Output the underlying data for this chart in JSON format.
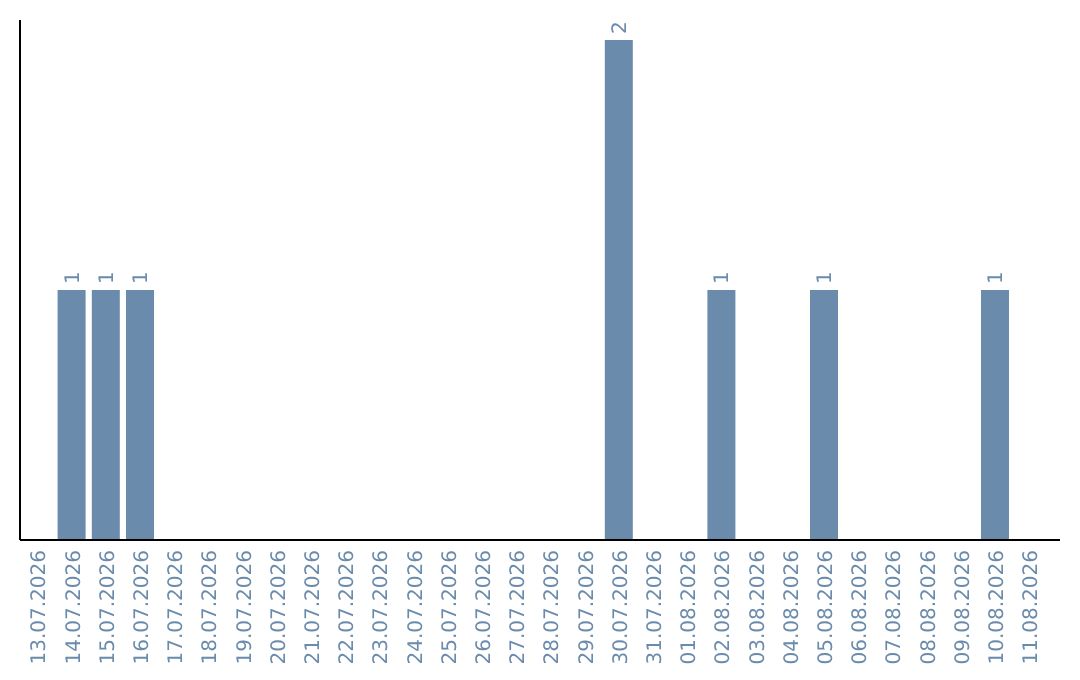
{
  "chart_data": {
    "type": "bar",
    "categories": [
      "13.07.2026",
      "14.07.2026",
      "15.07.2026",
      "16.07.2026",
      "17.07.2026",
      "18.07.2026",
      "19.07.2026",
      "20.07.2026",
      "21.07.2026",
      "22.07.2026",
      "23.07.2026",
      "24.07.2026",
      "25.07.2026",
      "26.07.2026",
      "27.07.2026",
      "28.07.2026",
      "29.07.2026",
      "30.07.2026",
      "31.07.2026",
      "01.08.2026",
      "02.08.2026",
      "03.08.2026",
      "04.08.2026",
      "05.08.2026",
      "06.08.2026",
      "07.08.2026",
      "08.08.2026",
      "09.08.2026",
      "10.08.2026",
      "11.08.2026"
    ],
    "values": [
      0,
      1,
      1,
      1,
      0,
      0,
      0,
      0,
      0,
      0,
      0,
      0,
      0,
      0,
      0,
      0,
      0,
      2,
      0,
      0,
      1,
      0,
      0,
      1,
      0,
      0,
      0,
      0,
      1,
      0
    ],
    "value_labels": [
      null,
      "1",
      "1",
      "1",
      null,
      null,
      null,
      null,
      null,
      null,
      null,
      null,
      null,
      null,
      null,
      null,
      null,
      "2",
      null,
      null,
      "1",
      null,
      null,
      "1",
      null,
      null,
      null,
      null,
      "1",
      null
    ],
    "color": "#6a8bab",
    "ylim": [
      0,
      2.08
    ],
    "tick_labels": "x"
  }
}
